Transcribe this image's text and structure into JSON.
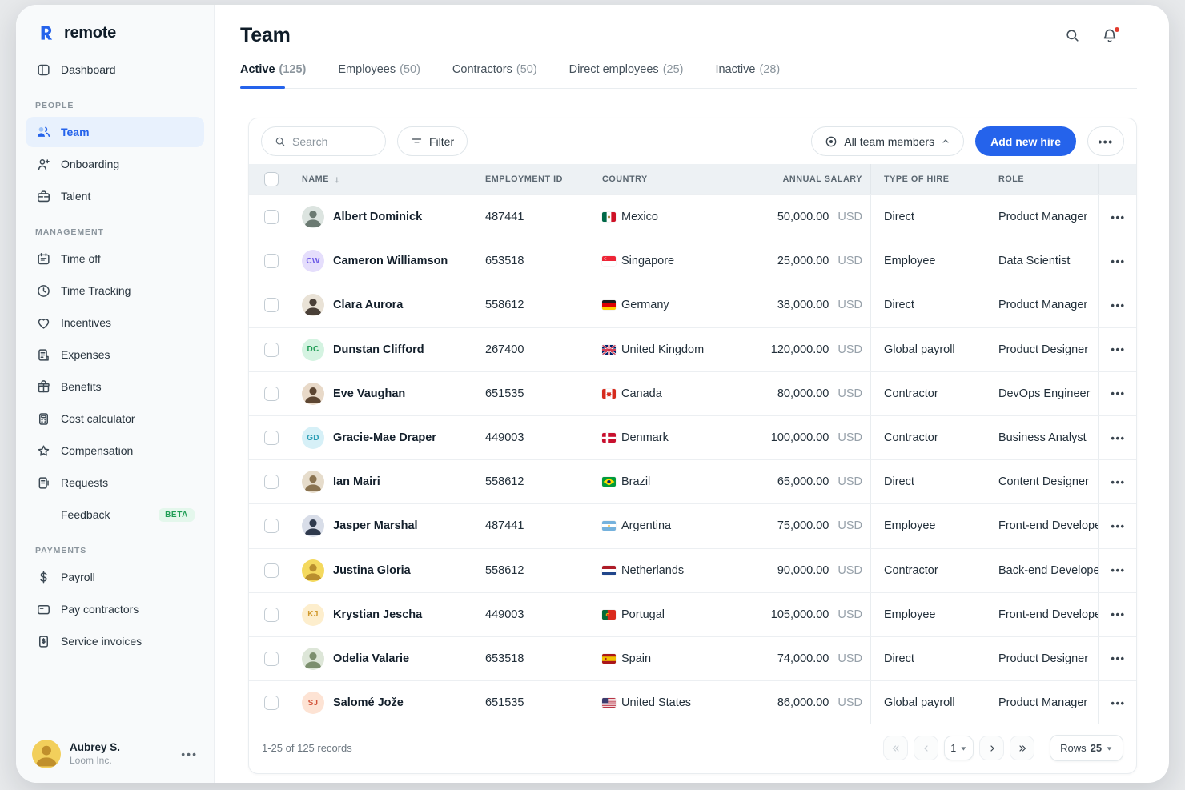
{
  "brand": {
    "name": "remote",
    "logo_letter": "R"
  },
  "colors": {
    "accent": "#2563eb",
    "active_item_bg": "#e8f1fd",
    "notification_dot": "#e23b2e",
    "beta_green": "#1f9d55"
  },
  "sidebar": {
    "sections": [
      {
        "label": "",
        "items": [
          {
            "label": "Dashboard",
            "icon": "dashboard"
          }
        ]
      },
      {
        "label": "PEOPLE",
        "items": [
          {
            "label": "Team",
            "icon": "team",
            "active": true
          },
          {
            "label": "Onboarding",
            "icon": "onboarding"
          },
          {
            "label": "Talent",
            "icon": "talent"
          }
        ]
      },
      {
        "label": "MANAGEMENT",
        "items": [
          {
            "label": "Time off",
            "icon": "timeoff"
          },
          {
            "label": "Time Tracking",
            "icon": "clock"
          },
          {
            "label": "Incentives",
            "icon": "heart"
          },
          {
            "label": "Expenses",
            "icon": "expenses"
          },
          {
            "label": "Benefits",
            "icon": "gift"
          },
          {
            "label": "Cost calculator",
            "icon": "calculator"
          },
          {
            "label": "Compensation",
            "icon": "star"
          },
          {
            "label": "Requests",
            "icon": "requests"
          },
          {
            "label": "Feedback",
            "icon": "",
            "badge": "BETA"
          }
        ]
      },
      {
        "label": "PAYMENTS",
        "items": [
          {
            "label": "Payroll",
            "icon": "dollar"
          },
          {
            "label": "Pay contractors",
            "icon": "card"
          },
          {
            "label": "Service invoices",
            "icon": "invoice"
          }
        ]
      }
    ],
    "user": {
      "name": "Aubrey S.",
      "company": "Loom Inc.",
      "avatar": {
        "type": "photo",
        "bg": "#f2cf5b",
        "fg": "#c08f2c"
      }
    }
  },
  "header": {
    "title": "Team"
  },
  "tabs": [
    {
      "label": "Active",
      "count": "(125)",
      "active": true
    },
    {
      "label": "Employees",
      "count": "(50)"
    },
    {
      "label": "Contractors",
      "count": "(50)"
    },
    {
      "label": "Direct employees",
      "count": "(25)"
    },
    {
      "label": "Inactive",
      "count": "(28)"
    }
  ],
  "toolbar": {
    "search_placeholder": "Search",
    "filter_label": "Filter",
    "scope_label": "All team members",
    "add_button_label": "Add new hire"
  },
  "table": {
    "columns": {
      "name": "Name",
      "employment_id": "Employment ID",
      "country": "Country",
      "annual_salary": "Annual salary",
      "type_of_hire": "Type of hire",
      "role": "Role"
    },
    "rows": [
      {
        "name": "Albert Dominick",
        "avatar": {
          "type": "photo",
          "bg": "#dce4e0",
          "fg": "#6b7a72"
        },
        "employment_id": "487441",
        "country": "Mexico",
        "flag": "mx",
        "salary": "50,000.00",
        "currency": "USD",
        "type_of_hire": "Direct",
        "role": "Product Manager"
      },
      {
        "name": "Cameron Williamson",
        "avatar": {
          "type": "initials",
          "text": "CW",
          "bg": "#e5defc",
          "fg": "#6d5ae6"
        },
        "employment_id": "653518",
        "country": "Singapore",
        "flag": "sg",
        "salary": "25,000.00",
        "currency": "USD",
        "type_of_hire": "Employee",
        "role": "Data Scientist"
      },
      {
        "name": "Clara Aurora",
        "avatar": {
          "type": "photo",
          "bg": "#e9e2d6",
          "fg": "#4a4038"
        },
        "employment_id": "558612",
        "country": "Germany",
        "flag": "de",
        "salary": "38,000.00",
        "currency": "USD",
        "type_of_hire": "Direct",
        "role": "Product Manager"
      },
      {
        "name": "Dunstan Clifford",
        "avatar": {
          "type": "initials",
          "text": "DC",
          "bg": "#d4f3e1",
          "fg": "#1f9d55"
        },
        "employment_id": "267400",
        "country": "United Kingdom",
        "flag": "gb",
        "salary": "120,000.00",
        "currency": "USD",
        "type_of_hire": "Global payroll",
        "role": "Product Designer"
      },
      {
        "name": "Eve Vaughan",
        "avatar": {
          "type": "photo",
          "bg": "#e8d9c8",
          "fg": "#5d4632"
        },
        "employment_id": "651535",
        "country": "Canada",
        "flag": "ca",
        "salary": "80,000.00",
        "currency": "USD",
        "type_of_hire": "Contractor",
        "role": "DevOps Engineer"
      },
      {
        "name": "Gracie-Mae Draper",
        "avatar": {
          "type": "initials",
          "text": "GD",
          "bg": "#d6f0f7",
          "fg": "#2a9db5"
        },
        "employment_id": "449003",
        "country": "Denmark",
        "flag": "dk",
        "salary": "100,000.00",
        "currency": "USD",
        "type_of_hire": "Contractor",
        "role": "Business Analyst"
      },
      {
        "name": "Ian Mairi",
        "avatar": {
          "type": "photo",
          "bg": "#e6dccb",
          "fg": "#8a7350"
        },
        "employment_id": "558612",
        "country": "Brazil",
        "flag": "br",
        "salary": "65,000.00",
        "currency": "USD",
        "type_of_hire": "Direct",
        "role": "Content Designer"
      },
      {
        "name": "Jasper Marshal",
        "avatar": {
          "type": "photo",
          "bg": "#d8dde8",
          "fg": "#2f3a4d"
        },
        "employment_id": "487441",
        "country": "Argentina",
        "flag": "ar",
        "salary": "75,000.00",
        "currency": "USD",
        "type_of_hire": "Employee",
        "role": "Front-end Developer"
      },
      {
        "name": "Justina Gloria",
        "avatar": {
          "type": "photo",
          "bg": "#f4d95e",
          "fg": "#b98f2e"
        },
        "employment_id": "558612",
        "country": "Netherlands",
        "flag": "nl",
        "salary": "90,000.00",
        "currency": "USD",
        "type_of_hire": "Contractor",
        "role": "Back-end Developer"
      },
      {
        "name": "Krystian Jescha",
        "avatar": {
          "type": "initials",
          "text": "KJ",
          "bg": "#fdeecd",
          "fg": "#d19a2f"
        },
        "employment_id": "449003",
        "country": "Portugal",
        "flag": "pt",
        "salary": "105,000.00",
        "currency": "USD",
        "type_of_hire": "Employee",
        "role": "Front-end Developer"
      },
      {
        "name": "Odelia Valarie",
        "avatar": {
          "type": "photo",
          "bg": "#dde6d8",
          "fg": "#7c8f6e"
        },
        "employment_id": "653518",
        "country": "Spain",
        "flag": "es",
        "salary": "74,000.00",
        "currency": "USD",
        "type_of_hire": "Direct",
        "role": "Product Designer"
      },
      {
        "name": "Salomé Jože",
        "avatar": {
          "type": "initials",
          "text": "SJ",
          "bg": "#fde3d4",
          "fg": "#d2543a"
        },
        "employment_id": "651535",
        "country": "United States",
        "flag": "us",
        "salary": "86,000.00",
        "currency": "USD",
        "type_of_hire": "Global payroll",
        "role": "Product Manager"
      }
    ]
  },
  "footer": {
    "records_text": "1-25 of 125 records",
    "current_page": "1",
    "rows_label": "Rows",
    "rows_per_page": "25"
  }
}
